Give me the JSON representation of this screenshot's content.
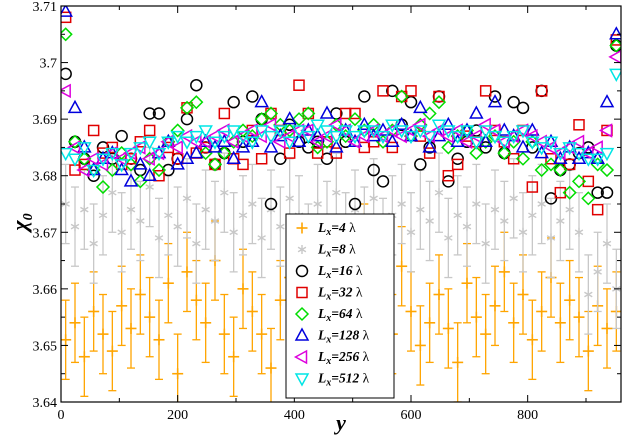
{
  "chart_data": {
    "type": "scatter",
    "title": "",
    "xlabel": "y",
    "ylabel": "χ",
    "ylabel_sub": "0",
    "xlim": [
      0,
      960
    ],
    "ylim": [
      3.64,
      3.71
    ],
    "xticks": [
      0,
      200,
      400,
      600,
      800
    ],
    "xtick_labels": [
      "0",
      "200",
      "400",
      "600",
      "800"
    ],
    "yticks": [
      3.64,
      3.65,
      3.66,
      3.67,
      3.68,
      3.69,
      3.7,
      3.71
    ],
    "ytick_labels": [
      "3.64",
      "3.65",
      "3.66",
      "3.67",
      "3.68",
      "3.69",
      "3.7",
      "3.71"
    ],
    "legend_position": "bottom-center",
    "lambda": "λ",
    "series": [
      {
        "name": "L_x = 4 λ",
        "sub": "x",
        "size": "4",
        "marker": "plus",
        "color": "#ffa500",
        "errorbars": true,
        "x": [
          8,
          24,
          40,
          56,
          72,
          88,
          104,
          120,
          136,
          152,
          168,
          184,
          200,
          216,
          232,
          248,
          264,
          280,
          296,
          312,
          328,
          344,
          360,
          376,
          392,
          408,
          424,
          440,
          456,
          472,
          488,
          504,
          520,
          536,
          552,
          568,
          584,
          600,
          616,
          632,
          648,
          664,
          680,
          696,
          712,
          728,
          744,
          760,
          776,
          792,
          808,
          824,
          840,
          856,
          872,
          888,
          904,
          920,
          936,
          952
        ],
        "y": [
          3.651,
          3.654,
          3.648,
          3.656,
          3.652,
          3.649,
          3.657,
          3.653,
          3.659,
          3.655,
          3.651,
          3.661,
          3.645,
          3.663,
          3.658,
          3.654,
          3.665,
          3.652,
          3.648,
          3.66,
          3.656,
          3.652,
          3.646,
          3.658,
          3.662,
          3.655,
          3.666,
          3.649,
          3.66,
          3.653,
          3.657,
          3.662,
          3.668,
          3.655,
          3.659,
          3.652,
          3.664,
          3.656,
          3.65,
          3.654,
          3.659,
          3.653,
          3.647,
          3.661,
          3.655,
          3.652,
          3.657,
          3.663,
          3.654,
          3.659,
          3.651,
          3.656,
          3.662,
          3.654,
          3.658,
          3.655,
          3.649,
          3.657,
          3.653,
          3.656
        ],
        "err": 0.007
      },
      {
        "name": "L_x = 8 λ",
        "sub": "x",
        "size": "8",
        "marker": "star",
        "color": "#c8c8c8",
        "errorbars": true,
        "x": [
          8,
          24,
          40,
          56,
          72,
          88,
          104,
          120,
          136,
          152,
          168,
          184,
          200,
          216,
          232,
          248,
          264,
          280,
          296,
          312,
          328,
          344,
          360,
          376,
          392,
          408,
          424,
          440,
          456,
          472,
          488,
          504,
          520,
          536,
          552,
          568,
          584,
          600,
          616,
          632,
          648,
          664,
          680,
          696,
          712,
          728,
          744,
          760,
          776,
          792,
          808,
          824,
          840,
          856,
          872,
          888,
          904,
          920,
          936,
          952
        ],
        "y": [
          3.675,
          3.671,
          3.674,
          3.668,
          3.673,
          3.677,
          3.67,
          3.674,
          3.672,
          3.678,
          3.669,
          3.673,
          3.671,
          3.676,
          3.668,
          3.674,
          3.672,
          3.677,
          3.67,
          3.673,
          3.675,
          3.669,
          3.674,
          3.671,
          3.676,
          3.673,
          3.668,
          3.675,
          3.672,
          3.677,
          3.67,
          3.674,
          3.671,
          3.676,
          3.669,
          3.673,
          3.675,
          3.67,
          3.674,
          3.672,
          3.677,
          3.669,
          3.673,
          3.671,
          3.675,
          3.668,
          3.674,
          3.672,
          3.676,
          3.67,
          3.673,
          3.675,
          3.669,
          3.672,
          3.674,
          3.67,
          3.659,
          3.663,
          3.668,
          3.66
        ],
        "err": 0.007
      },
      {
        "name": "L_x = 16 λ",
        "sub": "x",
        "size": "16",
        "marker": "circle",
        "color": "#000000",
        "errorbars": false,
        "x": [
          8,
          24,
          40,
          56,
          72,
          88,
          104,
          120,
          136,
          152,
          168,
          184,
          200,
          216,
          232,
          248,
          264,
          280,
          296,
          312,
          328,
          344,
          360,
          376,
          392,
          408,
          424,
          440,
          456,
          472,
          488,
          504,
          520,
          536,
          552,
          568,
          584,
          600,
          616,
          632,
          648,
          664,
          680,
          696,
          712,
          728,
          744,
          760,
          776,
          792,
          808,
          824,
          840,
          856,
          872,
          888,
          904,
          920,
          936,
          952
        ],
        "y": [
          3.698,
          3.686,
          3.683,
          3.68,
          3.685,
          3.683,
          3.687,
          3.683,
          3.681,
          3.691,
          3.691,
          3.681,
          3.683,
          3.69,
          3.696,
          3.685,
          3.682,
          3.684,
          3.693,
          3.686,
          3.694,
          3.69,
          3.675,
          3.683,
          3.689,
          3.686,
          3.685,
          3.686,
          3.683,
          3.691,
          3.686,
          3.675,
          3.694,
          3.681,
          3.679,
          3.695,
          3.689,
          3.693,
          3.682,
          3.685,
          3.694,
          3.679,
          3.683,
          3.686,
          3.688,
          3.685,
          3.694,
          3.684,
          3.693,
          3.692,
          3.685,
          3.695,
          3.676,
          3.681,
          3.682,
          3.684,
          3.685,
          3.677,
          3.677,
          3.703
        ]
      },
      {
        "name": "L_x = 32 λ",
        "sub": "x",
        "size": "32",
        "marker": "square",
        "color": "#e00000",
        "errorbars": false,
        "x": [
          8,
          24,
          40,
          56,
          72,
          88,
          104,
          120,
          136,
          152,
          168,
          184,
          200,
          216,
          232,
          248,
          264,
          280,
          296,
          312,
          328,
          344,
          360,
          376,
          392,
          408,
          424,
          440,
          456,
          472,
          488,
          504,
          520,
          536,
          552,
          568,
          584,
          600,
          616,
          632,
          648,
          664,
          680,
          696,
          712,
          728,
          744,
          760,
          776,
          792,
          808,
          824,
          840,
          856,
          872,
          888,
          904,
          920,
          936,
          952
        ],
        "y": [
          3.708,
          3.681,
          3.682,
          3.688,
          3.684,
          3.685,
          3.682,
          3.683,
          3.686,
          3.688,
          3.68,
          3.685,
          3.683,
          3.692,
          3.684,
          3.685,
          3.682,
          3.691,
          3.683,
          3.682,
          3.688,
          3.683,
          3.691,
          3.688,
          3.684,
          3.696,
          3.691,
          3.684,
          3.686,
          3.684,
          3.691,
          3.691,
          3.685,
          3.686,
          3.695,
          3.685,
          3.694,
          3.695,
          3.687,
          3.684,
          3.694,
          3.68,
          3.682,
          3.687,
          3.686,
          3.695,
          3.688,
          3.686,
          3.683,
          3.688,
          3.678,
          3.695,
          3.683,
          3.677,
          3.682,
          3.689,
          3.679,
          3.674,
          3.688,
          3.704
        ]
      },
      {
        "name": "L_x = 64 λ",
        "sub": "x",
        "size": "64",
        "marker": "diamond",
        "color": "#00dd00",
        "errorbars": false,
        "x": [
          8,
          24,
          40,
          56,
          72,
          88,
          104,
          120,
          136,
          152,
          168,
          184,
          200,
          216,
          232,
          248,
          264,
          280,
          296,
          312,
          328,
          344,
          360,
          376,
          392,
          408,
          424,
          440,
          456,
          472,
          488,
          504,
          520,
          536,
          552,
          568,
          584,
          600,
          616,
          632,
          648,
          664,
          680,
          696,
          712,
          728,
          744,
          760,
          776,
          792,
          808,
          824,
          840,
          856,
          872,
          888,
          904,
          920,
          936,
          952
        ],
        "y": [
          3.705,
          3.686,
          3.683,
          3.681,
          3.678,
          3.681,
          3.684,
          3.682,
          3.679,
          3.683,
          3.681,
          3.686,
          3.688,
          3.692,
          3.693,
          3.684,
          3.682,
          3.684,
          3.686,
          3.688,
          3.687,
          3.69,
          3.691,
          3.689,
          3.688,
          3.69,
          3.691,
          3.685,
          3.686,
          3.689,
          3.687,
          3.69,
          3.688,
          3.689,
          3.686,
          3.688,
          3.694,
          3.687,
          3.689,
          3.691,
          3.693,
          3.685,
          3.687,
          3.688,
          3.684,
          3.686,
          3.687,
          3.684,
          3.686,
          3.683,
          3.686,
          3.681,
          3.682,
          3.681,
          3.677,
          3.679,
          3.676,
          3.682,
          3.681,
          3.703
        ]
      },
      {
        "name": "L_x = 128 λ",
        "sub": "x",
        "size": "128",
        "marker": "triangle",
        "color": "#0000dd",
        "errorbars": false,
        "x": [
          8,
          24,
          40,
          56,
          72,
          88,
          104,
          120,
          136,
          152,
          168,
          184,
          200,
          216,
          232,
          248,
          264,
          280,
          296,
          312,
          328,
          344,
          360,
          376,
          392,
          408,
          424,
          440,
          456,
          472,
          488,
          504,
          520,
          536,
          552,
          568,
          584,
          600,
          616,
          632,
          648,
          664,
          680,
          696,
          712,
          728,
          744,
          760,
          776,
          792,
          808,
          824,
          840,
          856,
          872,
          888,
          904,
          920,
          936,
          952
        ],
        "y": [
          3.709,
          3.692,
          3.685,
          3.681,
          3.683,
          3.684,
          3.681,
          3.679,
          3.682,
          3.68,
          3.684,
          3.686,
          3.682,
          3.683,
          3.684,
          3.686,
          3.685,
          3.686,
          3.683,
          3.685,
          3.686,
          3.693,
          3.685,
          3.687,
          3.69,
          3.686,
          3.688,
          3.687,
          3.691,
          3.685,
          3.688,
          3.686,
          3.689,
          3.687,
          3.688,
          3.686,
          3.689,
          3.687,
          3.692,
          3.685,
          3.687,
          3.689,
          3.686,
          3.688,
          3.691,
          3.686,
          3.693,
          3.688,
          3.687,
          3.685,
          3.688,
          3.684,
          3.686,
          3.683,
          3.685,
          3.683,
          3.684,
          3.683,
          3.693,
          3.705
        ]
      },
      {
        "name": "L_x = 256 λ",
        "sub": "x",
        "size": "256",
        "marker": "tri-left",
        "color": "#dd00dd",
        "errorbars": false,
        "x": [
          8,
          24,
          40,
          56,
          72,
          88,
          104,
          120,
          136,
          152,
          168,
          184,
          200,
          216,
          232,
          248,
          264,
          280,
          296,
          312,
          328,
          344,
          360,
          376,
          392,
          408,
          424,
          440,
          456,
          472,
          488,
          504,
          520,
          536,
          552,
          568,
          584,
          600,
          616,
          632,
          648,
          664,
          680,
          696,
          712,
          728,
          744,
          760,
          776,
          792,
          808,
          824,
          840,
          856,
          872,
          888,
          904,
          920,
          936,
          952
        ],
        "y": [
          3.695,
          3.685,
          3.681,
          3.683,
          3.682,
          3.684,
          3.683,
          3.684,
          3.685,
          3.683,
          3.684,
          3.686,
          3.685,
          3.687,
          3.686,
          3.686,
          3.687,
          3.688,
          3.686,
          3.687,
          3.688,
          3.687,
          3.689,
          3.686,
          3.687,
          3.688,
          3.688,
          3.686,
          3.687,
          3.689,
          3.688,
          3.686,
          3.687,
          3.688,
          3.687,
          3.688,
          3.687,
          3.688,
          3.689,
          3.687,
          3.688,
          3.687,
          3.688,
          3.686,
          3.687,
          3.689,
          3.688,
          3.686,
          3.687,
          3.688,
          3.687,
          3.686,
          3.685,
          3.684,
          3.685,
          3.686,
          3.684,
          3.685,
          3.688,
          3.701
        ]
      },
      {
        "name": "L_x = 512 λ",
        "sub": "x",
        "size": "512",
        "marker": "tri-down",
        "color": "#00e5e5",
        "errorbars": false,
        "x": [
          8,
          24,
          40,
          56,
          72,
          88,
          104,
          120,
          136,
          152,
          168,
          184,
          200,
          216,
          232,
          248,
          264,
          280,
          296,
          312,
          328,
          344,
          360,
          376,
          392,
          408,
          424,
          440,
          456,
          472,
          488,
          504,
          520,
          536,
          552,
          568,
          584,
          600,
          616,
          632,
          648,
          664,
          680,
          696,
          712,
          728,
          744,
          760,
          776,
          792,
          808,
          824,
          840,
          856,
          872,
          888,
          904,
          920,
          936,
          952
        ],
        "y": [
          3.684,
          3.683,
          3.685,
          3.681,
          3.683,
          3.684,
          3.682,
          3.684,
          3.685,
          3.686,
          3.684,
          3.686,
          3.687,
          3.686,
          3.687,
          3.688,
          3.686,
          3.687,
          3.688,
          3.687,
          3.686,
          3.688,
          3.687,
          3.688,
          3.686,
          3.688,
          3.687,
          3.689,
          3.688,
          3.687,
          3.688,
          3.687,
          3.688,
          3.688,
          3.687,
          3.689,
          3.688,
          3.687,
          3.688,
          3.687,
          3.689,
          3.688,
          3.687,
          3.688,
          3.686,
          3.688,
          3.687,
          3.686,
          3.687,
          3.688,
          3.686,
          3.685,
          3.686,
          3.684,
          3.685,
          3.684,
          3.683,
          3.683,
          3.684,
          3.698
        ]
      }
    ]
  }
}
